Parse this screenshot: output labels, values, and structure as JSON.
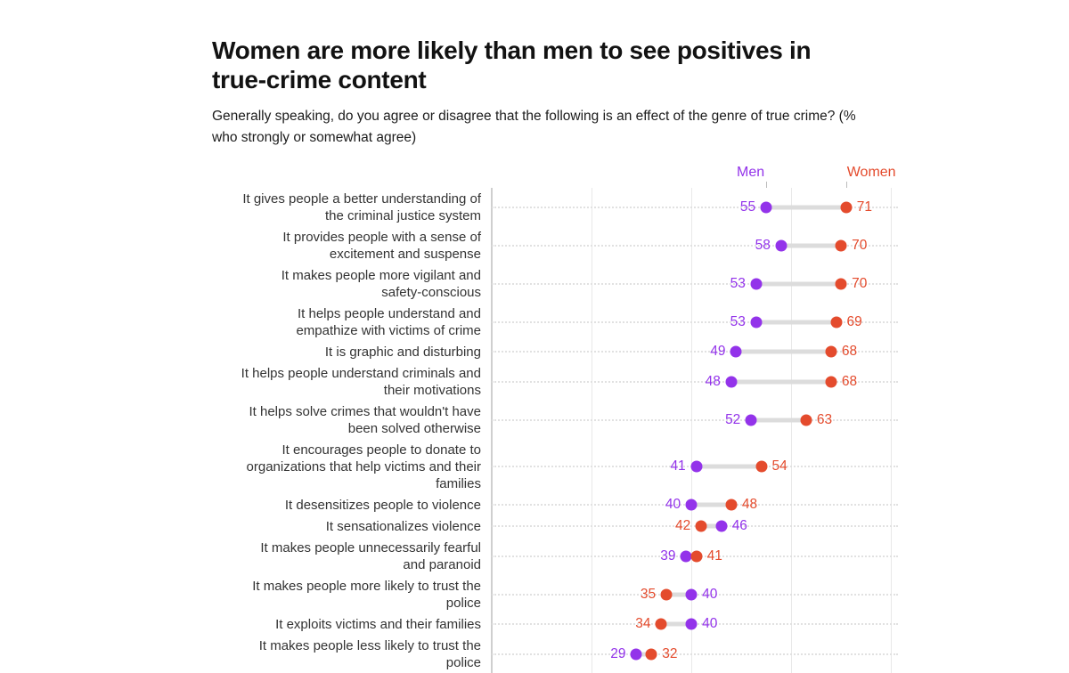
{
  "chart_data": {
    "type": "scatter",
    "variant": "dumbbell",
    "title": "Women are more likely than men to see positives in\ntrue-crime content",
    "subtitle": "Generally speaking, do you agree or disagree that the following is an effect of the genre of true crime? (%\nwho strongly or somewhat agree)",
    "categories": [
      "It gives people a better understanding of\nthe criminal justice system",
      "It provides people with a sense of\nexcitement and suspense",
      "It makes people more vigilant and\nsafety-conscious",
      "It helps people understand and\nempathize with victims of crime",
      "It is graphic and disturbing",
      "It helps people understand criminals and\ntheir motivations",
      "It helps solve crimes that wouldn't have\nbeen solved otherwise",
      "It encourages people to donate to\norganizations that help victims and their\nfamilies",
      "It desensitizes people to violence",
      "It sensationalizes violence",
      "It makes people unnecessarily fearful\nand paranoid",
      "It makes people more likely to trust the\npolice",
      "It exploits victims and their families",
      "It makes people less likely to trust the\npolice"
    ],
    "series": [
      {
        "name": "Men",
        "color": "#9333EA",
        "values": [
          55,
          58,
          53,
          53,
          49,
          48,
          52,
          41,
          40,
          46,
          39,
          40,
          40,
          29
        ]
      },
      {
        "name": "Women",
        "color": "#E44B2D",
        "values": [
          71,
          70,
          70,
          69,
          68,
          68,
          63,
          54,
          48,
          42,
          41,
          35,
          34,
          32
        ]
      }
    ],
    "xlim": [
      0,
      81.4
    ],
    "gridline_values": [
      0,
      20,
      40,
      60,
      80
    ],
    "legend_position": "top",
    "grid": "vertical light gridlines; dotted horizontal guide per row; no x-axis tick labels visible"
  },
  "colors": {
    "men": "#9333EA",
    "women": "#E44B2D",
    "connector": "#dcdcdc",
    "gridline": "#e9e9e9",
    "axis_line": "#cfcfcf",
    "row_dotted_line": "#e1e1e1",
    "legend_tick": "#bcbcbc",
    "title_text": "#121212",
    "label_text": "#333333"
  }
}
